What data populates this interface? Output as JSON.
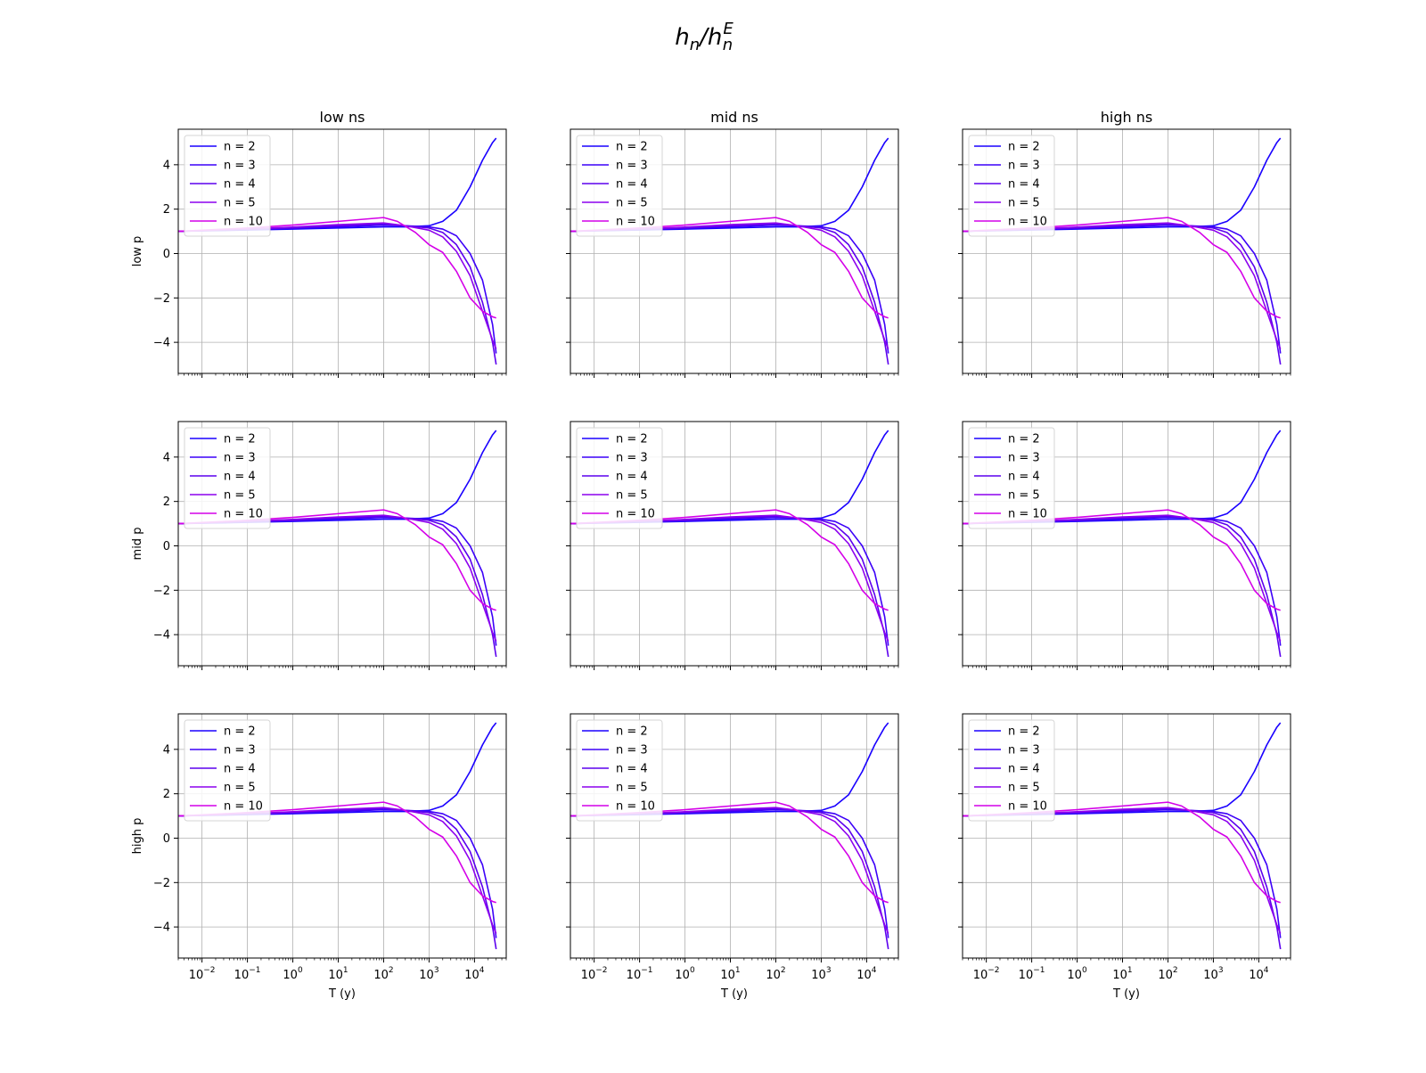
{
  "figure": {
    "title_base": "h",
    "title_sub": "n",
    "title_slash": "/",
    "title_sup": "E"
  },
  "chart_data": {
    "type": "line",
    "col_titles": [
      "low ns",
      "mid ns",
      "high ns"
    ],
    "row_labels": [
      "low p",
      "mid p",
      "high p"
    ],
    "xlabel": "T (y)",
    "xscale": "log",
    "xlim": [
      0.003,
      50000
    ],
    "ylim": [
      -5.4,
      5.6
    ],
    "xtick_base": "10",
    "xtick_exponents": [
      "−2",
      "−1",
      "0",
      "1",
      "2",
      "3",
      "4"
    ],
    "yticks": [
      4,
      2,
      0,
      -2,
      -4
    ],
    "ytick_labels": [
      "4",
      "2",
      "0",
      "−2",
      "−4"
    ],
    "grid": true,
    "legend_position": "upper-left",
    "colors": [
      "#1a00ff",
      "#3c00f8",
      "#5c00ee",
      "#8c00ee",
      "#d400e8"
    ],
    "series": [
      {
        "name": "n = 2",
        "x": [
          0.003,
          0.01,
          0.1,
          1,
          10,
          100,
          300,
          1000,
          2000,
          4000,
          8000,
          15000,
          25000,
          30000
        ],
        "y": [
          1.0,
          1.02,
          1.06,
          1.1,
          1.15,
          1.2,
          1.2,
          1.25,
          1.45,
          1.95,
          3.0,
          4.2,
          5.0,
          5.2
        ]
      },
      {
        "name": "n = 3",
        "x": [
          0.003,
          0.01,
          0.1,
          1,
          10,
          100,
          300,
          1000,
          2000,
          4000,
          8000,
          15000,
          25000,
          30000
        ],
        "y": [
          1.0,
          1.03,
          1.08,
          1.13,
          1.2,
          1.28,
          1.25,
          1.2,
          1.1,
          0.8,
          0.0,
          -1.2,
          -3.2,
          -4.5
        ]
      },
      {
        "name": "n = 4",
        "x": [
          0.003,
          0.01,
          0.1,
          1,
          10,
          100,
          300,
          1000,
          2000,
          4000,
          8000,
          15000,
          25000,
          30000
        ],
        "y": [
          1.0,
          1.03,
          1.09,
          1.16,
          1.25,
          1.33,
          1.25,
          1.15,
          0.95,
          0.4,
          -0.6,
          -2.2,
          -4.0,
          -5.0
        ]
      },
      {
        "name": "n = 5",
        "x": [
          0.003,
          0.01,
          0.1,
          1,
          10,
          100,
          300,
          1000,
          2000,
          4000,
          8000,
          15000,
          25000,
          30000
        ],
        "y": [
          1.0,
          1.03,
          1.1,
          1.19,
          1.3,
          1.38,
          1.25,
          1.05,
          0.75,
          0.1,
          -1.0,
          -2.6,
          -3.9,
          -4.3
        ]
      },
      {
        "name": "n = 10",
        "x": [
          0.003,
          0.01,
          0.1,
          1,
          10,
          100,
          200,
          500,
          1000,
          2000,
          4000,
          8000,
          15000,
          25000,
          30000
        ],
        "y": [
          1.0,
          1.05,
          1.15,
          1.28,
          1.45,
          1.62,
          1.45,
          0.95,
          0.4,
          0.05,
          -0.8,
          -2.0,
          -2.6,
          -2.85,
          -2.9
        ]
      }
    ]
  }
}
